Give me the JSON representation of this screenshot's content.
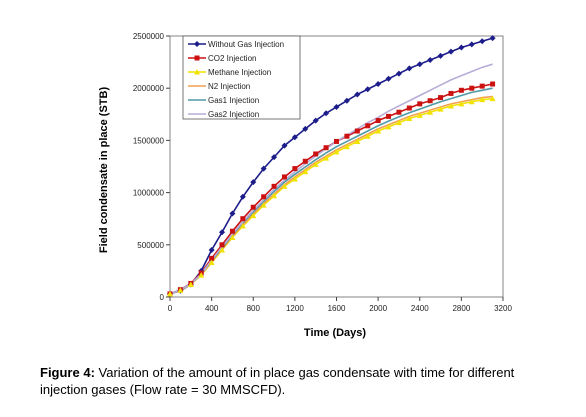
{
  "chart_data": {
    "type": "line",
    "x_label": "Time (Days)",
    "y_label": "Field condensate in place (STB)",
    "caption_label": "Figure 4:",
    "caption_text": "Variation of the amount of in place gas condensate with time for different injection gases (Flow rate = 30 MMSCFD).",
    "xlim": [
      0,
      3200
    ],
    "xticks": [
      0,
      400,
      800,
      1200,
      1600,
      2000,
      2400,
      2800,
      3200
    ],
    "ylim": [
      0,
      2500000
    ],
    "yticks": [
      0,
      500000,
      1000000,
      1500000,
      2000000,
      2500000
    ],
    "legend": "top-left",
    "x": [
      0,
      100,
      200,
      300,
      400,
      500,
      600,
      700,
      800,
      900,
      1000,
      1100,
      1200,
      1300,
      1400,
      1500,
      1600,
      1700,
      1800,
      1900,
      2000,
      2100,
      2200,
      2300,
      2400,
      2500,
      2600,
      2700,
      2800,
      2900,
      3000,
      3100
    ],
    "series": [
      {
        "name": "Without Gas Injection",
        "color": "#1c1c8a",
        "marker": "diamond",
        "values": [
          30000,
          60000,
          120000,
          250000,
          450000,
          620000,
          800000,
          960000,
          1100000,
          1230000,
          1340000,
          1450000,
          1530000,
          1610000,
          1690000,
          1760000,
          1820000,
          1880000,
          1940000,
          1990000,
          2040000,
          2090000,
          2140000,
          2190000,
          2230000,
          2270000,
          2310000,
          2350000,
          2390000,
          2420000,
          2450000,
          2480000
        ]
      },
      {
        "name": "CO2 Injection",
        "color": "#cc1111",
        "marker": "square",
        "values": [
          30000,
          70000,
          130000,
          230000,
          370000,
          500000,
          630000,
          750000,
          860000,
          960000,
          1060000,
          1150000,
          1230000,
          1300000,
          1370000,
          1430000,
          1490000,
          1540000,
          1590000,
          1640000,
          1690000,
          1730000,
          1770000,
          1810000,
          1850000,
          1880000,
          1910000,
          1950000,
          1980000,
          2000000,
          2020000,
          2040000
        ]
      },
      {
        "name": "Methane Injection",
        "color": "#f2e200",
        "marker": "triangle",
        "values": [
          30000,
          65000,
          120000,
          210000,
          330000,
          450000,
          570000,
          680000,
          780000,
          880000,
          970000,
          1060000,
          1130000,
          1200000,
          1270000,
          1330000,
          1390000,
          1440000,
          1490000,
          1540000,
          1590000,
          1630000,
          1670000,
          1710000,
          1740000,
          1770000,
          1800000,
          1830000,
          1850000,
          1870000,
          1890000,
          1900000
        ]
      },
      {
        "name": "N2 Injection",
        "color": "#f0a050",
        "marker": "none",
        "values": [
          30000,
          66000,
          122000,
          215000,
          340000,
          460000,
          580000,
          690000,
          795000,
          895000,
          985000,
          1075000,
          1150000,
          1220000,
          1290000,
          1350000,
          1410000,
          1460000,
          1510000,
          1560000,
          1610000,
          1650000,
          1690000,
          1730000,
          1760000,
          1790000,
          1820000,
          1850000,
          1870000,
          1890000,
          1910000,
          1920000
        ]
      },
      {
        "name": "Gas1 Injection",
        "color": "#4f9aa6",
        "marker": "none",
        "values": [
          30000,
          68000,
          125000,
          220000,
          350000,
          470000,
          595000,
          710000,
          815000,
          915000,
          1010000,
          1100000,
          1175000,
          1245000,
          1315000,
          1380000,
          1440000,
          1490000,
          1540000,
          1590000,
          1640000,
          1685000,
          1725000,
          1765000,
          1800000,
          1835000,
          1870000,
          1900000,
          1930000,
          1960000,
          1980000,
          2000000
        ]
      },
      {
        "name": "Gas2 Injection",
        "color": "#b8acd8",
        "marker": "none",
        "values": [
          30000,
          68000,
          125000,
          220000,
          355000,
          480000,
          605000,
          720000,
          830000,
          930000,
          1030000,
          1120000,
          1200000,
          1275000,
          1350000,
          1420000,
          1490000,
          1550000,
          1610000,
          1670000,
          1720000,
          1780000,
          1830000,
          1880000,
          1930000,
          1980000,
          2030000,
          2080000,
          2120000,
          2160000,
          2200000,
          2230000
        ]
      }
    ]
  }
}
